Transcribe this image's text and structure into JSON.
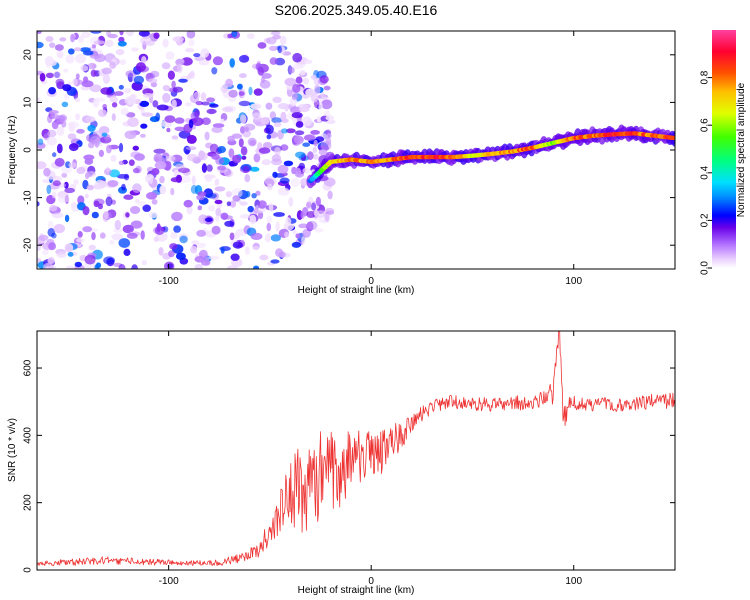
{
  "figure_title": "S206.2025.349.05.40.E16",
  "chart_data": [
    {
      "type": "heatmap",
      "title": "S206.2025.349.05.40.E16",
      "xlabel": "Height of straight line (km)",
      "ylabel": "Frequency (Hz)",
      "xlim": [
        -165,
        150
      ],
      "ylim": [
        -25,
        25
      ],
      "xticks": [
        -100,
        0,
        100
      ],
      "yticks": [
        -20,
        -10,
        0,
        10,
        20
      ],
      "colorbar": {
        "label": "Normalized spectral amplitude",
        "range": [
          0,
          1
        ],
        "ticks": [
          0.0,
          0.2,
          0.4,
          0.6,
          0.8
        ],
        "colormap": [
          "#ffffff",
          "#e9ccff",
          "#b070ff",
          "#6a00e8",
          "#0000ff",
          "#0090ff",
          "#00e0ff",
          "#00ff80",
          "#40ff00",
          "#e0ff00",
          "#ffc000",
          "#ff5000",
          "#ff0030",
          "#ff40a0"
        ]
      },
      "ridge": {
        "description": "dominant frequency track",
        "x": [
          -30,
          -20,
          -10,
          0,
          10,
          20,
          30,
          40,
          50,
          60,
          70,
          80,
          90,
          100,
          110,
          120,
          130,
          140,
          150
        ],
        "y": [
          -6.5,
          -2.5,
          -2.0,
          -2.5,
          -2.0,
          -1.5,
          -1.5,
          -1.5,
          -1.2,
          -0.8,
          -0.3,
          0.5,
          1.5,
          2.5,
          3.0,
          3.3,
          3.5,
          3.0,
          2.5
        ],
        "amplitude": [
          0.3,
          0.75,
          0.85,
          0.8,
          0.85,
          0.9,
          0.95,
          0.9,
          0.7,
          0.8,
          0.85,
          0.9,
          0.6,
          0.9,
          0.85,
          0.95,
          0.9,
          0.85,
          0.9
        ]
      },
      "noise_region": {
        "x_range": [
          -165,
          -20
        ],
        "freq_range": [
          -25,
          25
        ],
        "typical_amplitude": [
          0.02,
          0.3
        ]
      }
    },
    {
      "type": "line",
      "xlabel": "Height of straight line (km)",
      "ylabel": "SNR (10 * v/v)",
      "xlim": [
        -165,
        150
      ],
      "ylim": [
        0,
        710
      ],
      "xticks": [
        -100,
        0,
        100
      ],
      "yticks": [
        0,
        200,
        400,
        600
      ],
      "series": [
        {
          "name": "SNR",
          "color": "#ee3333",
          "x": [
            -165,
            -150,
            -130,
            -110,
            -90,
            -75,
            -65,
            -55,
            -50,
            -45,
            -40,
            -35,
            -30,
            -25,
            -20,
            -15,
            -10,
            -5,
            0,
            5,
            10,
            15,
            20,
            25,
            30,
            35,
            40,
            50,
            60,
            70,
            80,
            88,
            90,
            93,
            95,
            98,
            100,
            110,
            120,
            130,
            140,
            150
          ],
          "y": [
            20,
            22,
            30,
            24,
            20,
            22,
            35,
            60,
            120,
            180,
            220,
            250,
            230,
            280,
            290,
            300,
            320,
            330,
            340,
            350,
            380,
            400,
            430,
            460,
            480,
            490,
            500,
            495,
            490,
            495,
            500,
            530,
            540,
            700,
            440,
            500,
            495,
            490,
            492,
            495,
            500,
            505
          ],
          "noise": [
            6,
            8,
            10,
            8,
            6,
            8,
            12,
            20,
            35,
            60,
            90,
            110,
            120,
            120,
            110,
            100,
            80,
            70,
            60,
            55,
            45,
            35,
            25,
            22,
            20,
            20,
            18,
            18,
            18,
            18,
            20,
            30,
            40,
            40,
            40,
            20,
            18,
            18,
            18,
            18,
            20,
            20
          ]
        }
      ]
    }
  ]
}
